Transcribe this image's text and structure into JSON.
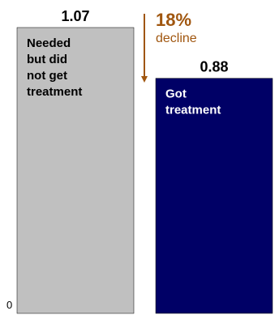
{
  "chart_data": {
    "type": "bar",
    "categories": [
      "Needed but did not get treatment",
      "Got treatment"
    ],
    "values": [
      1.07,
      0.88
    ],
    "value_labels": [
      "1.07",
      "0.88"
    ],
    "category_label_lines": [
      [
        "Needed",
        "but did",
        "not get",
        "treatment"
      ],
      [
        "Got",
        "treatment"
      ]
    ],
    "bar_colors": [
      "#c0c0c0",
      "#000066"
    ],
    "label_colors": [
      "#000000",
      "#ffffff"
    ],
    "y_tick_labels": [
      "0"
    ],
    "ylim": [
      0,
      1.07
    ],
    "annotation": {
      "percent": "18%",
      "text": "decline",
      "color": "#a0560f"
    },
    "title": "",
    "xlabel": "",
    "ylabel": "",
    "grid": false,
    "legend": "none"
  }
}
